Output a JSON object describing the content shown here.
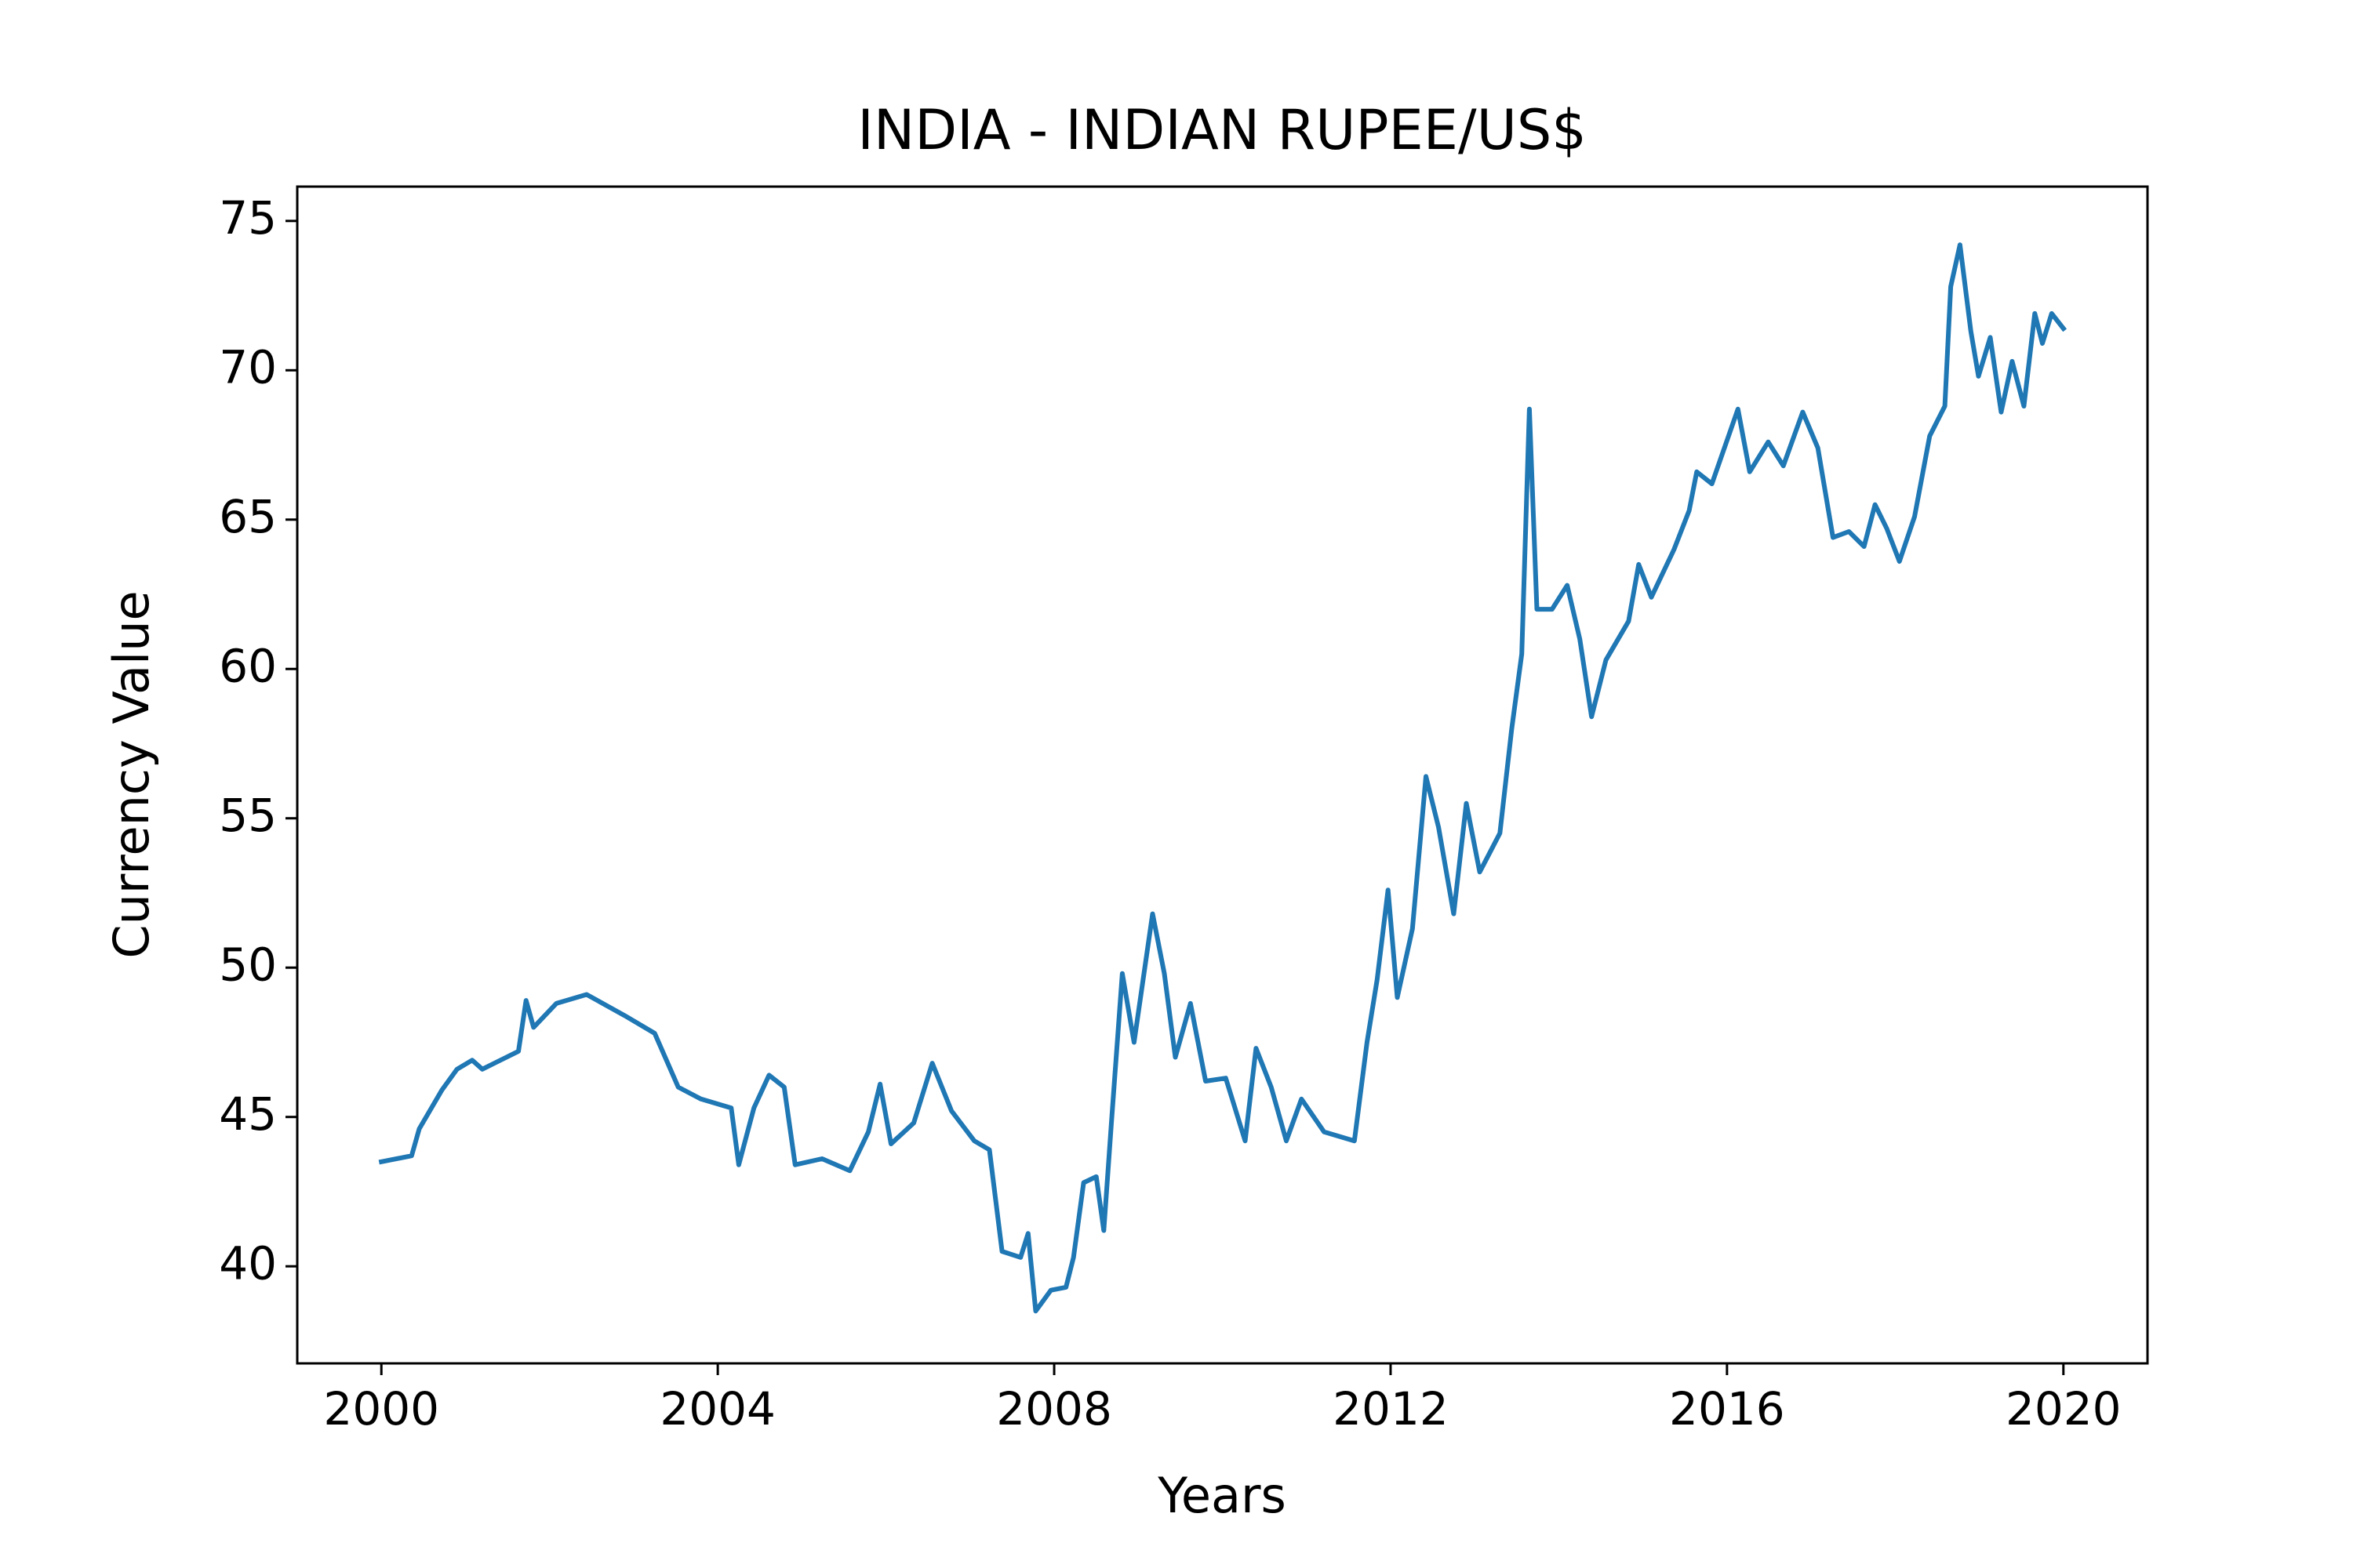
{
  "chart_data": {
    "type": "line",
    "title": "INDIA - INDIAN RUPEE/US$",
    "x_label": "Years",
    "y_label": "Currency Value",
    "x": [
      2000.0,
      2000.36,
      2000.45,
      2000.72,
      2000.9,
      2001.08,
      2001.2,
      2001.63,
      2001.72,
      2001.81,
      2002.08,
      2002.44,
      2002.89,
      2003.25,
      2003.53,
      2003.8,
      2004.16,
      2004.25,
      2004.43,
      2004.61,
      2004.79,
      2004.92,
      2005.24,
      2005.57,
      2005.79,
      2005.93,
      2006.06,
      2006.33,
      2006.55,
      2006.78,
      2007.05,
      2007.23,
      2007.38,
      2007.6,
      2007.69,
      2007.78,
      2007.96,
      2008.14,
      2008.23,
      2008.35,
      2008.5,
      2008.59,
      2008.68,
      2008.81,
      2008.95,
      2009.17,
      2009.31,
      2009.44,
      2009.62,
      2009.8,
      2010.04,
      2010.27,
      2010.4,
      2010.58,
      2010.76,
      2010.94,
      2011.21,
      2011.57,
      2011.72,
      2011.84,
      2011.97,
      2012.08,
      2012.26,
      2012.42,
      2012.57,
      2012.75,
      2012.9,
      2013.06,
      2013.3,
      2013.44,
      2013.56,
      2013.65,
      2013.74,
      2013.92,
      2014.1,
      2014.25,
      2014.39,
      2014.56,
      2014.83,
      2014.95,
      2015.1,
      2015.37,
      2015.55,
      2015.64,
      2015.82,
      2016.13,
      2016.27,
      2016.49,
      2016.67,
      2016.9,
      2017.08,
      2017.26,
      2017.45,
      2017.63,
      2017.76,
      2017.9,
      2018.05,
      2018.23,
      2018.41,
      2018.59,
      2018.66,
      2018.77,
      2018.9,
      2018.99,
      2019.13,
      2019.26,
      2019.39,
      2019.53,
      2019.66,
      2019.75,
      2019.86,
      2020.0
    ],
    "series": [
      {
        "name": "INDIAN RUPEE/US$",
        "color": "#1f77b4",
        "values": [
          43.5,
          43.7,
          44.6,
          45.9,
          46.6,
          46.9,
          46.6,
          47.2,
          48.9,
          48.0,
          48.8,
          49.1,
          48.4,
          47.8,
          46.0,
          45.6,
          45.3,
          43.4,
          45.3,
          46.4,
          46.0,
          43.4,
          43.6,
          43.2,
          44.5,
          46.1,
          44.1,
          44.8,
          46.8,
          45.2,
          44.2,
          43.9,
          40.5,
          40.3,
          41.1,
          38.5,
          39.2,
          39.3,
          40.3,
          42.8,
          43.0,
          41.2,
          44.8,
          49.8,
          47.5,
          51.8,
          49.8,
          47.0,
          48.8,
          46.2,
          46.3,
          44.2,
          47.3,
          46.0,
          44.2,
          45.6,
          44.5,
          44.2,
          47.5,
          49.6,
          52.6,
          49.0,
          51.3,
          56.4,
          54.7,
          51.8,
          55.5,
          53.2,
          54.5,
          58.0,
          60.5,
          68.7,
          62.0,
          62.0,
          62.8,
          61.0,
          58.4,
          60.3,
          61.6,
          63.5,
          62.4,
          64.0,
          65.3,
          66.6,
          66.2,
          68.7,
          66.6,
          67.6,
          66.8,
          68.6,
          67.4,
          64.4,
          64.6,
          64.1,
          65.5,
          64.7,
          63.6,
          65.1,
          67.8,
          68.8,
          72.8,
          74.2,
          71.3,
          69.8,
          71.1,
          68.6,
          70.3,
          68.8,
          71.9,
          70.9,
          71.9,
          71.4
        ]
      }
    ],
    "xlim": [
      1999.0,
      2021.0
    ],
    "ylim": [
      36.75,
      76.15
    ],
    "xticks": [
      2000,
      2004,
      2008,
      2012,
      2016,
      2020
    ],
    "yticks": [
      40,
      45,
      50,
      55,
      60,
      65,
      70,
      75
    ],
    "grid": false
  }
}
